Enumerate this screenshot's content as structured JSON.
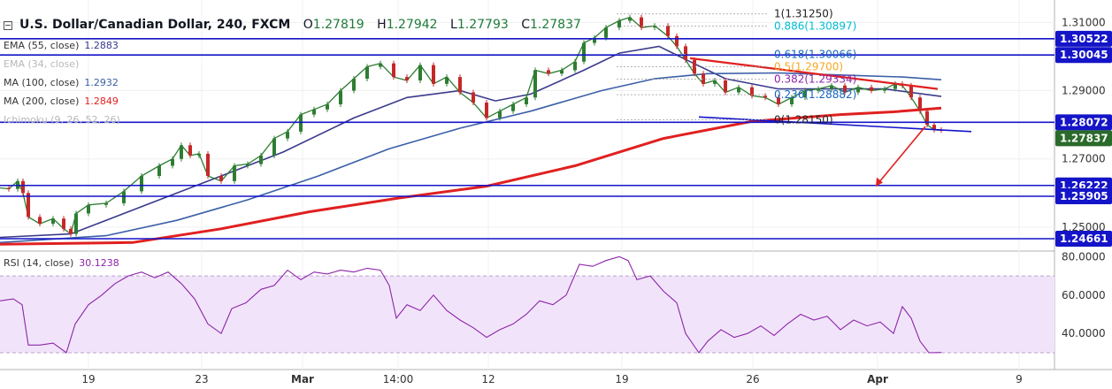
{
  "header": {
    "symbol": "U.S. Dollar/Canadian Dollar, 240, FXCM",
    "open_label": "O",
    "open": "1.27819",
    "high_label": "H",
    "high": "1.27942",
    "low_label": "L",
    "low": "1.27793",
    "close_label": "C",
    "close": "1.27837"
  },
  "indicators": [
    {
      "label": "EMA (55, close)",
      "value": "1.2883",
      "color": "#3a3a8c"
    },
    {
      "label": "EMA (34, close)",
      "value": "",
      "color": "#b8b8b8"
    },
    {
      "label": "MA (100, close)",
      "value": "1.2932",
      "color": "#3a5fa8"
    },
    {
      "label": "MA (200, close)",
      "value": "1.2849",
      "color": "#e02020"
    },
    {
      "label": "Ichimoku (9, 26, 52, 26)",
      "value": "",
      "color": "#b8b8b8"
    }
  ],
  "rsi": {
    "label": "RSI (14, close)",
    "value": "30.1238"
  },
  "fib_labels": [
    "1(1.31250)",
    "0.886(1.30897)",
    "0.618(1.30066)",
    "0.5(1.29700)",
    "0.382(1.29334)",
    "0.236(1.28882)",
    "0(1.28150)"
  ],
  "price_axis": [
    "1.31000",
    "1.29000",
    "1.27000",
    "1.25000"
  ],
  "price_tags": [
    {
      "text": "1.30522",
      "color": "#1414c8"
    },
    {
      "text": "1.30045",
      "color": "#1414c8"
    },
    {
      "text": "1.28072",
      "color": "#1414c8"
    },
    {
      "text": "1.27837",
      "color": "#2a6a2a"
    },
    {
      "text": "1.26222",
      "color": "#1414c8"
    },
    {
      "text": "1.25905",
      "color": "#1414c8"
    },
    {
      "text": "1.24661",
      "color": "#1414c8"
    }
  ],
  "rsi_axis": [
    "80.0000",
    "60.0000",
    "40.0000"
  ],
  "time_axis": [
    "19",
    "23",
    "Mar",
    "14:00",
    "12",
    "19",
    "26",
    "Apr",
    "9"
  ],
  "chart_data": {
    "type": "line",
    "title": "U.S. Dollar/Canadian Dollar, 240, FXCM",
    "price_ylim": [
      1.2435,
      1.3145
    ],
    "rsi_ylim": [
      24,
      82
    ],
    "price": [
      [
        0,
        1.2615
      ],
      [
        10,
        1.2612
      ],
      [
        20,
        1.2635
      ],
      [
        26,
        1.26
      ],
      [
        32,
        1.253
      ],
      [
        45,
        1.251
      ],
      [
        60,
        1.2525
      ],
      [
        72,
        1.2495
      ],
      [
        80,
        1.248
      ],
      [
        86,
        1.254
      ],
      [
        100,
        1.2565
      ],
      [
        120,
        1.257
      ],
      [
        140,
        1.2605
      ],
      [
        160,
        1.265
      ],
      [
        180,
        1.268
      ],
      [
        195,
        1.27
      ],
      [
        205,
        1.274
      ],
      [
        215,
        1.271
      ],
      [
        225,
        1.2715
      ],
      [
        235,
        1.265
      ],
      [
        250,
        1.2635
      ],
      [
        265,
        1.268
      ],
      [
        280,
        1.2685
      ],
      [
        295,
        1.271
      ],
      [
        310,
        1.276
      ],
      [
        325,
        1.278
      ],
      [
        340,
        1.283
      ],
      [
        355,
        1.2845
      ],
      [
        370,
        1.286
      ],
      [
        385,
        1.29
      ],
      [
        400,
        1.2935
      ],
      [
        415,
        1.297
      ],
      [
        430,
        1.298
      ],
      [
        445,
        1.294
      ],
      [
        460,
        1.293
      ],
      [
        475,
        1.2975
      ],
      [
        490,
        1.292
      ],
      [
        505,
        1.294
      ],
      [
        520,
        1.2895
      ],
      [
        535,
        1.2865
      ],
      [
        550,
        1.282
      ],
      [
        565,
        1.284
      ],
      [
        580,
        1.286
      ],
      [
        595,
        1.288
      ],
      [
        605,
        1.296
      ],
      [
        620,
        1.295
      ],
      [
        635,
        1.296
      ],
      [
        650,
        1.2985
      ],
      [
        660,
        1.304
      ],
      [
        672,
        1.3055
      ],
      [
        685,
        1.3085
      ],
      [
        700,
        1.3105
      ],
      [
        712,
        1.3115
      ],
      [
        725,
        1.3085
      ],
      [
        740,
        1.309
      ],
      [
        755,
        1.306
      ],
      [
        765,
        1.303
      ],
      [
        775,
        1.299
      ],
      [
        785,
        1.295
      ],
      [
        795,
        1.292
      ],
      [
        808,
        1.293
      ],
      [
        820,
        1.2895
      ],
      [
        835,
        1.291
      ],
      [
        850,
        1.2885
      ],
      [
        865,
        1.288
      ],
      [
        880,
        1.286
      ],
      [
        895,
        1.288
      ],
      [
        910,
        1.29
      ],
      [
        925,
        1.2905
      ],
      [
        940,
        1.2915
      ],
      [
        955,
        1.2895
      ],
      [
        970,
        1.291
      ],
      [
        985,
        1.29
      ],
      [
        1000,
        1.2905
      ],
      [
        1012,
        1.292
      ],
      [
        1020,
        1.2915
      ],
      [
        1030,
        1.288
      ],
      [
        1040,
        1.284
      ],
      [
        1048,
        1.28
      ],
      [
        1056,
        1.2785
      ],
      [
        1064,
        1.27837
      ]
    ],
    "series": [
      {
        "name": "EMA (55, close)",
        "color": "#3a3a8c",
        "values": [
          [
            0,
            1.247
          ],
          [
            80,
            1.248
          ],
          [
            160,
            1.256
          ],
          [
            240,
            1.264
          ],
          [
            320,
            1.272
          ],
          [
            400,
            1.282
          ],
          [
            460,
            1.288
          ],
          [
            520,
            1.29
          ],
          [
            560,
            1.287
          ],
          [
            600,
            1.289
          ],
          [
            660,
            1.296
          ],
          [
            700,
            1.301
          ],
          [
            745,
            1.303
          ],
          [
            780,
            1.2985
          ],
          [
            820,
            1.2935
          ],
          [
            880,
            1.2905
          ],
          [
            940,
            1.2905
          ],
          [
            1000,
            1.2905
          ],
          [
            1064,
            1.2883
          ]
        ]
      },
      {
        "name": "MA (100, close)",
        "color": "#3a5fa8",
        "values": [
          [
            0,
            1.2455
          ],
          [
            120,
            1.2475
          ],
          [
            200,
            1.252
          ],
          [
            280,
            1.258
          ],
          [
            360,
            1.265
          ],
          [
            440,
            1.273
          ],
          [
            520,
            1.279
          ],
          [
            600,
            1.284
          ],
          [
            680,
            1.29
          ],
          [
            740,
            1.2935
          ],
          [
            800,
            1.295
          ],
          [
            880,
            1.2952
          ],
          [
            960,
            1.2945
          ],
          [
            1020,
            1.294
          ],
          [
            1064,
            1.2932
          ]
        ]
      },
      {
        "name": "MA (200, close)",
        "color": "#e02020",
        "values": [
          [
            0,
            1.245
          ],
          [
            150,
            1.2455
          ],
          [
            250,
            1.2495
          ],
          [
            350,
            1.2545
          ],
          [
            450,
            1.2585
          ],
          [
            550,
            1.262
          ],
          [
            650,
            1.268
          ],
          [
            750,
            1.276
          ],
          [
            850,
            1.281
          ],
          [
            950,
            1.283
          ],
          [
            1010,
            1.2838
          ],
          [
            1064,
            1.2849
          ]
        ]
      }
    ],
    "rsi": [
      [
        0,
        57
      ],
      [
        15,
        58
      ],
      [
        25,
        55
      ],
      [
        32,
        34
      ],
      [
        45,
        34
      ],
      [
        60,
        35
      ],
      [
        75,
        30
      ],
      [
        85,
        45
      ],
      [
        100,
        55
      ],
      [
        115,
        60
      ],
      [
        130,
        66
      ],
      [
        145,
        70
      ],
      [
        160,
        72
      ],
      [
        175,
        69
      ],
      [
        190,
        72
      ],
      [
        205,
        66
      ],
      [
        220,
        58
      ],
      [
        235,
        45
      ],
      [
        250,
        40
      ],
      [
        262,
        53
      ],
      [
        278,
        56
      ],
      [
        295,
        63
      ],
      [
        310,
        65
      ],
      [
        325,
        73
      ],
      [
        340,
        68
      ],
      [
        355,
        72
      ],
      [
        370,
        71
      ],
      [
        385,
        73
      ],
      [
        400,
        72
      ],
      [
        415,
        74
      ],
      [
        430,
        73
      ],
      [
        440,
        65
      ],
      [
        448,
        48
      ],
      [
        460,
        55
      ],
      [
        475,
        52
      ],
      [
        490,
        60
      ],
      [
        505,
        52
      ],
      [
        520,
        47
      ],
      [
        535,
        43
      ],
      [
        550,
        38
      ],
      [
        565,
        42
      ],
      [
        580,
        45
      ],
      [
        595,
        50
      ],
      [
        610,
        57
      ],
      [
        625,
        55
      ],
      [
        640,
        60
      ],
      [
        655,
        76
      ],
      [
        670,
        75
      ],
      [
        685,
        78
      ],
      [
        700,
        80
      ],
      [
        710,
        78
      ],
      [
        720,
        68
      ],
      [
        735,
        70
      ],
      [
        750,
        62
      ],
      [
        765,
        56
      ],
      [
        775,
        40
      ],
      [
        790,
        30
      ],
      [
        800,
        36
      ],
      [
        815,
        42
      ],
      [
        830,
        38
      ],
      [
        845,
        40
      ],
      [
        860,
        44
      ],
      [
        875,
        39
      ],
      [
        890,
        45
      ],
      [
        905,
        50
      ],
      [
        920,
        47
      ],
      [
        935,
        49
      ],
      [
        950,
        42
      ],
      [
        965,
        47
      ],
      [
        980,
        44
      ],
      [
        995,
        46
      ],
      [
        1010,
        40
      ],
      [
        1020,
        54
      ],
      [
        1030,
        48
      ],
      [
        1040,
        36
      ],
      [
        1050,
        30
      ],
      [
        1064,
        30.1238
      ]
    ],
    "horizontal_levels": [
      1.30522,
      1.30045,
      1.28072,
      1.26222,
      1.25905,
      1.24661
    ],
    "fib_levels": [
      1.3125,
      1.30897,
      1.30066,
      1.297,
      1.29334,
      1.28882,
      1.2815
    ],
    "rsi_band": [
      30,
      70
    ],
    "current_price": 1.27837,
    "grid": true
  }
}
